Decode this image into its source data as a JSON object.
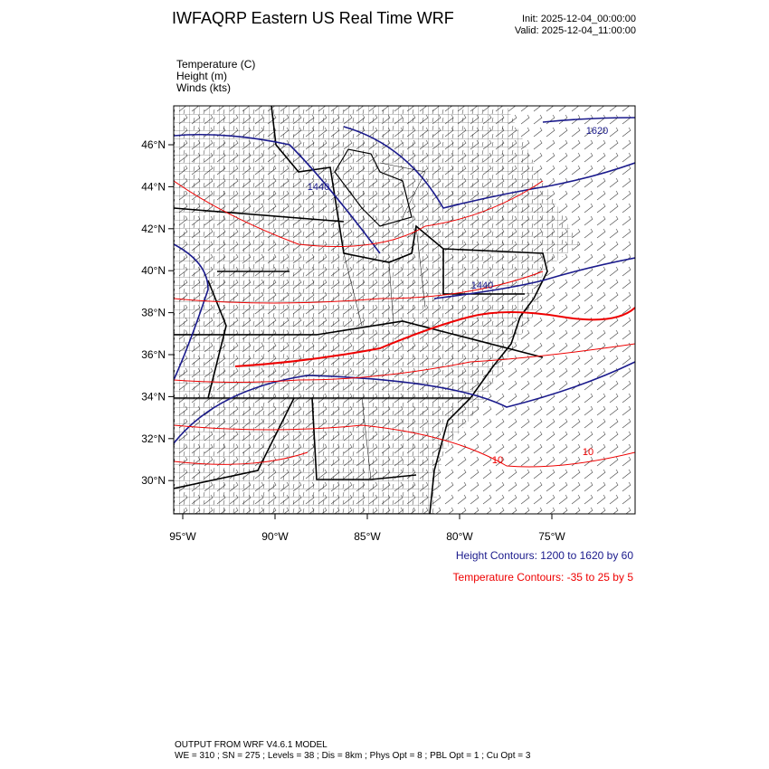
{
  "header": {
    "title": "IWFAQRP Eastern US Real Time WRF",
    "init": "Init: 2025-12-04_00:00:00",
    "valid": "Valid: 2025-12-04_11:00:00"
  },
  "fields": [
    "Temperature   (C)",
    "Height   (m)",
    "Winds   (kts)"
  ],
  "lat_labels": [
    "46°N",
    "44°N",
    "42°N",
    "40°N",
    "38°N",
    "36°N",
    "34°N",
    "32°N",
    "30°N"
  ],
  "lon_labels": [
    "95°W",
    "90°W",
    "85°W",
    "80°W",
    "75°W"
  ],
  "contour_labels": [
    "1620",
    "1440",
    "1440",
    "10",
    "10"
  ],
  "legend": {
    "height": "Height Contours: 1200 to 1620 by 60",
    "temperature": "Temperature Contours: -35 to 25 by 5"
  },
  "footer": [
    "OUTPUT FROM WRF V4.6.1 MODEL",
    "WE = 310 ; SN = 275 ; Levels = 38 ; Dis = 8km ; Phys Opt = 8 ; PBL Opt = 1 ; Cu Opt = 3"
  ]
}
